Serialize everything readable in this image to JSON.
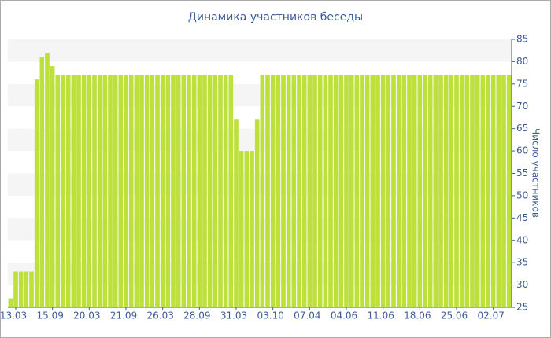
{
  "chart_data": {
    "type": "bar",
    "title": "Динамика участников беседы",
    "y_label": "Число участников",
    "categories": [
      null,
      "13.03",
      null,
      null,
      null,
      null,
      null,
      null,
      "15.09",
      null,
      null,
      null,
      null,
      null,
      null,
      "20.03",
      null,
      null,
      null,
      null,
      null,
      null,
      "21.09",
      null,
      null,
      null,
      null,
      null,
      null,
      "26.03",
      null,
      null,
      null,
      null,
      null,
      null,
      "28.09",
      null,
      null,
      null,
      null,
      null,
      null,
      "31.03",
      null,
      null,
      null,
      null,
      null,
      null,
      "03.10",
      null,
      null,
      null,
      null,
      null,
      null,
      "07.04",
      null,
      null,
      null,
      null,
      null,
      null,
      "04.06",
      null,
      null,
      null,
      null,
      null,
      null,
      "11.06",
      null,
      null,
      null,
      null,
      null,
      null,
      "18.06",
      null,
      null,
      null,
      null,
      null,
      null,
      "25.06",
      null,
      null,
      null,
      null,
      null,
      null,
      "02.07",
      null,
      null,
      null
    ],
    "values": [
      27,
      33,
      33,
      33,
      33,
      76,
      81,
      82,
      79,
      77,
      77,
      77,
      77,
      77,
      77,
      77,
      77,
      77,
      77,
      77,
      77,
      77,
      77,
      77,
      77,
      77,
      77,
      77,
      77,
      77,
      77,
      77,
      77,
      77,
      77,
      77,
      77,
      77,
      77,
      77,
      77,
      77,
      77,
      67,
      60,
      60,
      60,
      67,
      77,
      77,
      77,
      77,
      77,
      77,
      77,
      77,
      77,
      77,
      77,
      77,
      77,
      77,
      77,
      77,
      77,
      77,
      77,
      77,
      77,
      77,
      77,
      77,
      77,
      77,
      77,
      77,
      77,
      77,
      77,
      77,
      77,
      77,
      77,
      77,
      77,
      77,
      77,
      77,
      77,
      77,
      77,
      77,
      77,
      77,
      77,
      77
    ],
    "color": "#bde03a",
    "ylim": [
      25,
      85
    ],
    "yticks": [
      25,
      30,
      35,
      40,
      45,
      50,
      55,
      60,
      65,
      70,
      75,
      80,
      85
    ],
    "grid_bands": true,
    "y_axis_side": "right"
  }
}
